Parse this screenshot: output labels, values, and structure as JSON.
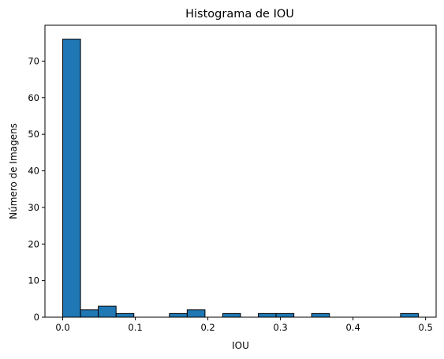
{
  "chart_data": {
    "type": "bar",
    "title": "Histograma de IOU",
    "xlabel": "IOU",
    "ylabel": "Número de Imagens",
    "xlim": [
      -0.0245,
      0.5145
    ],
    "ylim": [
      0,
      79.8
    ],
    "x_ticks": [
      {
        "value": 0.0,
        "label": "0.0"
      },
      {
        "value": 0.1,
        "label": "0.1"
      },
      {
        "value": 0.2,
        "label": "0.2"
      },
      {
        "value": 0.3,
        "label": "0.3"
      },
      {
        "value": 0.4,
        "label": "0.4"
      },
      {
        "value": 0.5,
        "label": "0.5"
      }
    ],
    "y_ticks": [
      {
        "value": 0,
        "label": "0"
      },
      {
        "value": 10,
        "label": "10"
      },
      {
        "value": 20,
        "label": "20"
      },
      {
        "value": 30,
        "label": "30"
      },
      {
        "value": 40,
        "label": "40"
      },
      {
        "value": 50,
        "label": "50"
      },
      {
        "value": 60,
        "label": "60"
      },
      {
        "value": 70,
        "label": "70"
      }
    ],
    "bin_edges": [
      0.0,
      0.0245,
      0.049,
      0.0735,
      0.098,
      0.1225,
      0.147,
      0.1715,
      0.196,
      0.2205,
      0.245,
      0.2695,
      0.294,
      0.3185,
      0.343,
      0.3675,
      0.392,
      0.4165,
      0.441,
      0.4655,
      0.49
    ],
    "counts": [
      76,
      2,
      3,
      1,
      0,
      0,
      1,
      2,
      0,
      1,
      0,
      1,
      1,
      0,
      1,
      0,
      0,
      0,
      0,
      1
    ],
    "bar_color": "#1f77b4",
    "edge_color": "#000000",
    "grid": false
  }
}
